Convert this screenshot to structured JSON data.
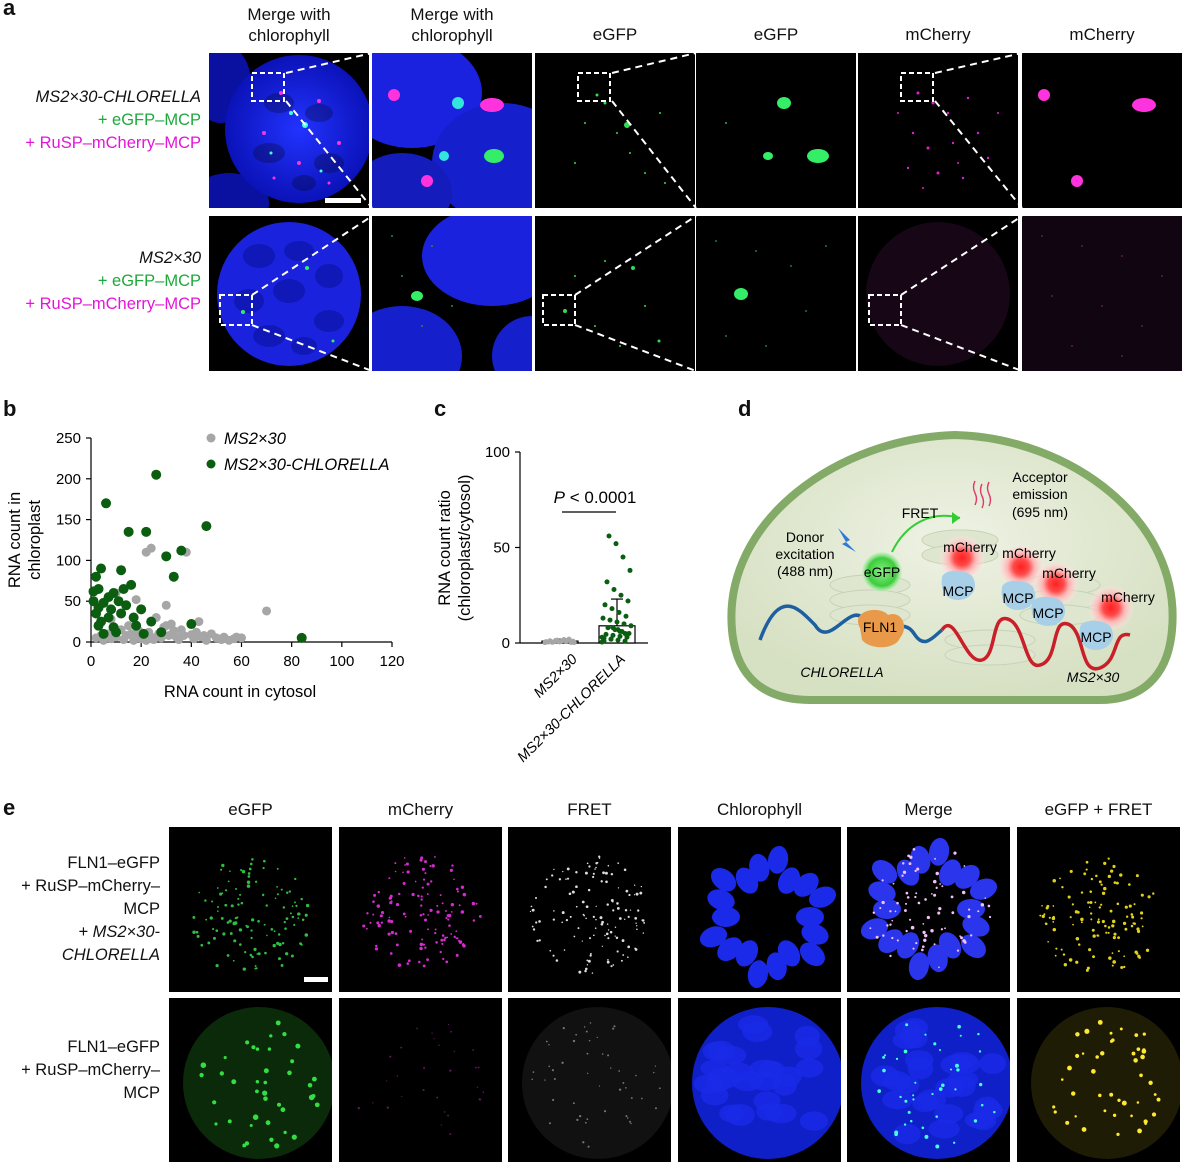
{
  "panel_labels": {
    "a": "a",
    "b": "b",
    "c": "c",
    "d": "d",
    "e": "e"
  },
  "panel_a": {
    "column_headers": [
      "Merge with\nchlorophyll",
      "Merge with\nchlorophyll",
      "eGFP",
      "eGFP",
      "mCherry",
      "mCherry"
    ],
    "row1": {
      "line1": "MS2×30-CHLORELLA",
      "line2": "+ eGFP–MCP",
      "line3": "+ RuSP–mCherry–MCP"
    },
    "row2": {
      "line1": "MS2×30",
      "line2": "+ eGFP–MCP",
      "line3": "+ RuSP–mCherry–MCP"
    }
  },
  "panel_e": {
    "column_headers": [
      "eGFP",
      "mCherry",
      "FRET",
      "Chlorophyll",
      "Merge",
      "eGFP + FRET"
    ],
    "row1": {
      "line1": "FLN1–eGFP",
      "line2": "+ RuSP–mCherry–",
      "line3": "MCP",
      "line4": "+ MS2×30-",
      "line5": "CHLORELLA"
    },
    "row2": {
      "line1": "FLN1–eGFP",
      "line2": "+ RuSP–mCherry–",
      "line3": "MCP"
    }
  },
  "panel_d": {
    "labels": {
      "fret": "FRET",
      "acceptor1": "Acceptor",
      "acceptor2": "emission",
      "acceptor3": "(695 nm)",
      "donor1": "Donor",
      "donor2": "excitation",
      "donor3": "(488 nm)",
      "egfp": "eGFP",
      "fln1": "FLN1",
      "mcherry": "mCherry",
      "mcp": "MCP",
      "chlorella": "CHLORELLA",
      "ms2": "MS2×30"
    }
  },
  "chart_data": [
    {
      "type": "scatter",
      "panel": "b",
      "xlabel": "RNA count in cytosol",
      "ylabel_line1": "RNA count in",
      "ylabel_line2": "chloroplast",
      "xlim": [
        0,
        120
      ],
      "ylim": [
        0,
        250
      ],
      "xticks": [
        0,
        20,
        40,
        60,
        80,
        100,
        120
      ],
      "yticks": [
        0,
        50,
        100,
        150,
        200,
        250
      ],
      "legend_position": "top-right",
      "series": [
        {
          "name": "MS2×30",
          "color": "#a6a6a6",
          "points": [
            [
              2,
              5
            ],
            [
              4,
              8
            ],
            [
              5,
              2
            ],
            [
              7,
              10
            ],
            [
              8,
              4
            ],
            [
              10,
              6
            ],
            [
              12,
              15
            ],
            [
              13,
              3
            ],
            [
              14,
              8
            ],
            [
              15,
              20
            ],
            [
              16,
              10
            ],
            [
              17,
              2
            ],
            [
              18,
              6
            ],
            [
              19,
              14
            ],
            [
              20,
              4
            ],
            [
              21,
              8
            ],
            [
              22,
              2
            ],
            [
              23,
              12
            ],
            [
              24,
              6
            ],
            [
              25,
              3
            ],
            [
              26,
              30
            ],
            [
              27,
              10
            ],
            [
              28,
              5
            ],
            [
              29,
              18
            ],
            [
              30,
              45
            ],
            [
              31,
              8
            ],
            [
              32,
              22
            ],
            [
              33,
              14
            ],
            [
              34,
              6
            ],
            [
              35,
              3
            ],
            [
              36,
              15
            ],
            [
              37,
              8
            ],
            [
              38,
              110
            ],
            [
              40,
              9
            ],
            [
              41,
              4
            ],
            [
              42,
              12
            ],
            [
              43,
              25
            ],
            [
              44,
              6
            ],
            [
              45,
              8
            ],
            [
              46,
              2
            ],
            [
              48,
              10
            ],
            [
              50,
              5
            ],
            [
              52,
              3
            ],
            [
              53,
              6
            ],
            [
              55,
              2
            ],
            [
              57,
              4
            ],
            [
              58,
              6
            ],
            [
              60,
              5
            ],
            [
              22,
              110
            ],
            [
              24,
              115
            ],
            [
              10,
              60
            ],
            [
              14,
              45
            ],
            [
              30,
              20
            ],
            [
              70,
              38
            ],
            [
              18,
              52
            ],
            [
              8,
              28
            ]
          ]
        },
        {
          "name": "MS2×30-CHLORELLA",
          "color": "#0b5e10",
          "points": [
            [
              1,
              50
            ],
            [
              2,
              35
            ],
            [
              3,
              42
            ],
            [
              4,
              25
            ],
            [
              5,
              10
            ],
            [
              6,
              170
            ],
            [
              7,
              55
            ],
            [
              8,
              40
            ],
            [
              9,
              18
            ],
            [
              10,
              12
            ],
            [
              11,
              50
            ],
            [
              12,
              88
            ],
            [
              13,
              65
            ],
            [
              14,
              45
            ],
            [
              15,
              135
            ],
            [
              16,
              70
            ],
            [
              17,
              30
            ],
            [
              18,
              20
            ],
            [
              20,
              40
            ],
            [
              21,
              10
            ],
            [
              22,
              135
            ],
            [
              24,
              25
            ],
            [
              26,
              205
            ],
            [
              28,
              12
            ],
            [
              30,
              105
            ],
            [
              33,
              80
            ],
            [
              36,
              112
            ],
            [
              40,
              22
            ],
            [
              46,
              142
            ],
            [
              84,
              5
            ],
            [
              3,
              65
            ],
            [
              5,
              48
            ],
            [
              7,
              30
            ],
            [
              9,
              60
            ],
            [
              12,
              35
            ],
            [
              3,
              20
            ],
            [
              1,
              62
            ],
            [
              2,
              80
            ],
            [
              4,
              90
            ]
          ]
        }
      ]
    },
    {
      "type": "bar",
      "panel": "c",
      "ylabel_line1": "RNA count ratio",
      "ylabel_line2": "(chloroplast/cytosol)",
      "categories": [
        "MS2×30",
        "MS2×30-CHLORELLA"
      ],
      "values": [
        1,
        9
      ],
      "error_upper": [
        2,
        23
      ],
      "ylim": [
        0,
        100
      ],
      "yticks": [
        0,
        50,
        100
      ],
      "annotation": "P < 0.0001",
      "annotation_p": "P",
      "annotation_rest": " < 0.0001",
      "points_group1": [
        0.2,
        0.4,
        0.6,
        0.8,
        1.0,
        1.2,
        1.5,
        1.8,
        0.3,
        0.5,
        0.9,
        1.1,
        2.0,
        0.7,
        0.4,
        0.6,
        1.3,
        0.2,
        0.8,
        1.0
      ],
      "points_group2": [
        0.5,
        1,
        1.5,
        2,
        2.5,
        3,
        3.5,
        4,
        4.5,
        5,
        6,
        7,
        8,
        9,
        10,
        11,
        12,
        13,
        14,
        16,
        18,
        20,
        22,
        25,
        28,
        32,
        38,
        45,
        52,
        56,
        3,
        5,
        7,
        2,
        1,
        4,
        6,
        8
      ]
    }
  ]
}
